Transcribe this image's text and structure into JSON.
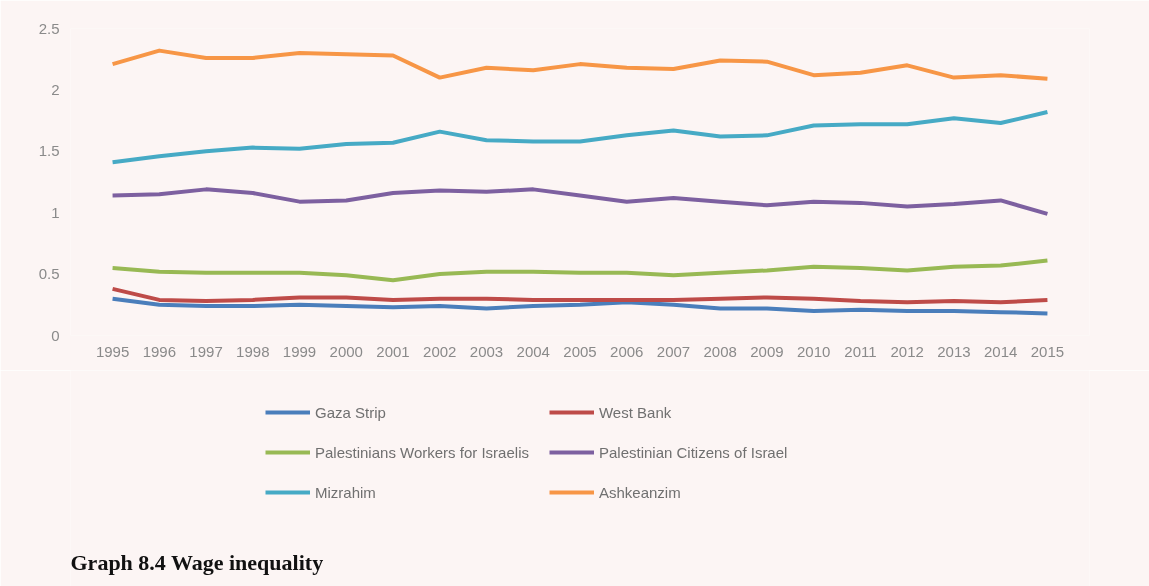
{
  "chart_data": {
    "type": "line",
    "title": "Graph 8.4   Wage inequality",
    "categories": [
      "1995",
      "1996",
      "1997",
      "1998",
      "1999",
      "2000",
      "2001",
      "2002",
      "2003",
      "2004",
      "2005",
      "2006",
      "2007",
      "2008",
      "2009",
      "2010",
      "2011",
      "2012",
      "2013",
      "2014",
      "2015"
    ],
    "ylim": [
      0,
      2.5
    ],
    "yticks": [
      0,
      0.5,
      1,
      1.5,
      2,
      2.5
    ],
    "grid": false,
    "legend": "bottom",
    "marker": "none",
    "line_style": "solid",
    "series": [
      {
        "name": "Gaza Strip",
        "color": "#4a7ebb",
        "values": [
          0.3,
          0.25,
          0.24,
          0.24,
          0.25,
          0.24,
          0.23,
          0.24,
          0.22,
          0.24,
          0.25,
          0.27,
          0.25,
          0.22,
          0.22,
          0.2,
          0.21,
          0.2,
          0.2,
          0.19,
          0.18
        ]
      },
      {
        "name": "West Bank",
        "color": "#be4b48",
        "values": [
          0.38,
          0.29,
          0.28,
          0.29,
          0.31,
          0.31,
          0.29,
          0.3,
          0.3,
          0.29,
          0.29,
          0.29,
          0.29,
          0.3,
          0.31,
          0.3,
          0.28,
          0.27,
          0.28,
          0.27,
          0.29
        ]
      },
      {
        "name": "Palestinians Workers for Israelis",
        "color": "#98b954",
        "values": [
          0.55,
          0.52,
          0.51,
          0.51,
          0.51,
          0.49,
          0.45,
          0.5,
          0.52,
          0.52,
          0.51,
          0.51,
          0.49,
          0.51,
          0.53,
          0.56,
          0.55,
          0.53,
          0.56,
          0.57,
          0.61
        ]
      },
      {
        "name": "Palestinian Citizens of Israel",
        "color": "#7d60a0",
        "values": [
          1.14,
          1.15,
          1.19,
          1.16,
          1.09,
          1.1,
          1.16,
          1.18,
          1.17,
          1.19,
          1.14,
          1.09,
          1.12,
          1.09,
          1.06,
          1.09,
          1.08,
          1.05,
          1.07,
          1.1,
          0.99
        ]
      },
      {
        "name": "Mizrahim",
        "color": "#46aac5",
        "values": [
          1.41,
          1.46,
          1.5,
          1.53,
          1.52,
          1.56,
          1.57,
          1.66,
          1.59,
          1.58,
          1.58,
          1.63,
          1.67,
          1.62,
          1.63,
          1.71,
          1.72,
          1.72,
          1.77,
          1.73,
          1.82
        ]
      },
      {
        "name": "Ashkeanzim",
        "color": "#f79646",
        "values": [
          2.21,
          2.32,
          2.26,
          2.26,
          2.3,
          2.29,
          2.28,
          2.1,
          2.18,
          2.16,
          2.21,
          2.18,
          2.17,
          2.24,
          2.23,
          2.12,
          2.14,
          2.2,
          2.1,
          2.12,
          2.09
        ]
      }
    ]
  }
}
